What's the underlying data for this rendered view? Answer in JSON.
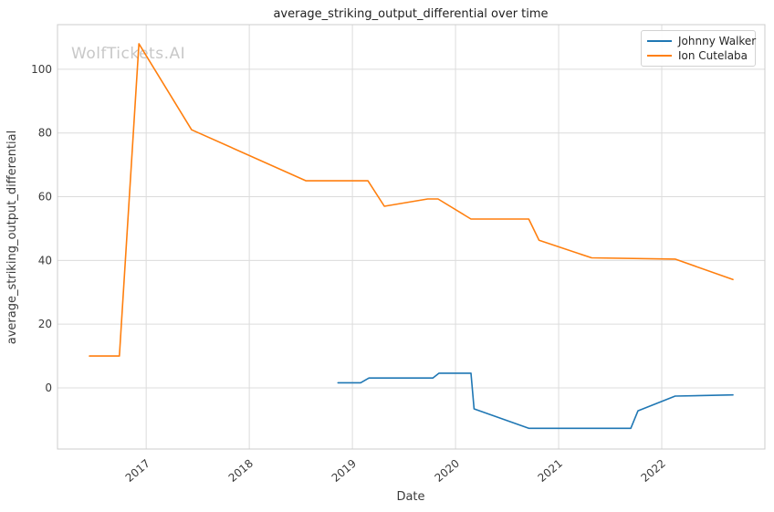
{
  "page": {
    "watermark": "WolfTickets.AI"
  },
  "chart_data": {
    "type": "line",
    "title": "average_striking_output_differential over time",
    "xlabel": "Date",
    "ylabel": "average_striking_output_differential",
    "watermark": "WolfTickets.AI",
    "grid": true,
    "legend_position": "upper right",
    "xlim": [
      2016.14,
      2023.0
    ],
    "ylim": [
      -19.2,
      114.0
    ],
    "x_ticks": [
      2017,
      2018,
      2019,
      2020,
      2021,
      2022
    ],
    "y_ticks": [
      0,
      20,
      40,
      60,
      80,
      100
    ],
    "series": [
      {
        "name": "Johnny Walker",
        "color": "#1f77b4",
        "x": [
          2018.86,
          2019.08,
          2019.16,
          2019.78,
          2019.84,
          2020.15,
          2020.18,
          2020.71,
          2021.7,
          2021.77,
          2022.13,
          2022.69
        ],
        "y": [
          1.6,
          1.6,
          3.1,
          3.1,
          4.6,
          4.6,
          -6.6,
          -12.7,
          -12.7,
          -7.2,
          -2.6,
          -2.2
        ]
      },
      {
        "name": "Ion Cutelaba",
        "color": "#ff7f0e",
        "x": [
          2016.45,
          2016.74,
          2016.93,
          2017.44,
          2018.55,
          2019.15,
          2019.31,
          2019.73,
          2019.83,
          2020.15,
          2020.71,
          2020.81,
          2021.32,
          2022.13,
          2022.69
        ],
        "y": [
          10,
          10,
          108,
          81,
          65,
          65,
          57,
          59.3,
          59.3,
          53,
          53,
          46.3,
          40.8,
          40.4,
          34
        ]
      }
    ],
    "colors": {
      "background": "#ffffff",
      "grid": "#dcdcdc",
      "spine": "#cccccc",
      "tick_text": "#3b3b3b",
      "title_text": "#1f1f1f",
      "watermark": "#c8c8c8"
    }
  }
}
